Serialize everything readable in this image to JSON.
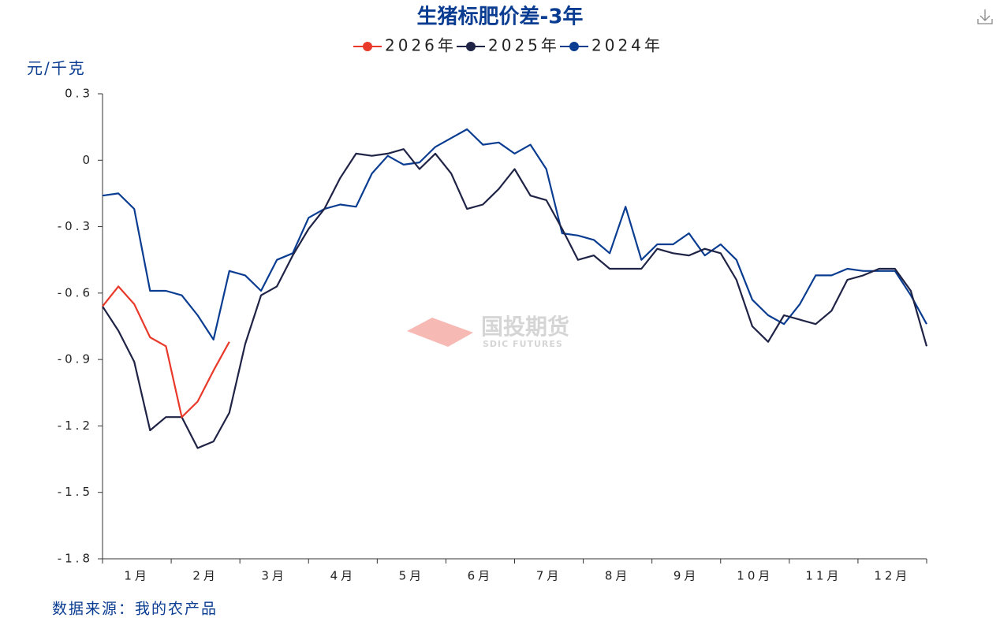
{
  "chart_data": {
    "type": "line",
    "title": "生猪标肥价差-3年",
    "y_label": "元/千克",
    "source": "数据来源：我的农产品",
    "watermark": [
      "国投期货",
      "SDIC FUTURES"
    ],
    "x": [
      0,
      1,
      2,
      3,
      4,
      5,
      6,
      7,
      8,
      9,
      10,
      11,
      12,
      13,
      14,
      15,
      16,
      17,
      18,
      19,
      20,
      21,
      22,
      23,
      24,
      25,
      26,
      27,
      28,
      29,
      30,
      31,
      32,
      33,
      34,
      35,
      36,
      37,
      38,
      39,
      40,
      41,
      42,
      43,
      44,
      45,
      46,
      47,
      48,
      49,
      50,
      51,
      52
    ],
    "xlim": [
      0,
      52
    ],
    "xticks": [
      {
        "value": 2.17,
        "label": "1月"
      },
      {
        "value": 6.5,
        "label": "2月"
      },
      {
        "value": 10.83,
        "label": "3月"
      },
      {
        "value": 15.17,
        "label": "4月"
      },
      {
        "value": 19.5,
        "label": "5月"
      },
      {
        "value": 23.83,
        "label": "6月"
      },
      {
        "value": 28.17,
        "label": "7月"
      },
      {
        "value": 32.5,
        "label": "8月"
      },
      {
        "value": 36.83,
        "label": "9月"
      },
      {
        "value": 41.17,
        "label": "10月"
      },
      {
        "value": 45.5,
        "label": "11月"
      },
      {
        "value": 49.83,
        "label": "12月"
      }
    ],
    "ylim": [
      -1.8,
      0.3
    ],
    "yticks": [
      0.3,
      0,
      -0.3,
      -0.6,
      -0.9,
      -1.2,
      -1.5,
      -1.8
    ],
    "series": [
      {
        "name": "2026年",
        "color": "#e8392a",
        "values": [
          -0.66,
          -0.57,
          -0.65,
          -0.8,
          -0.84,
          -1.16,
          -1.09,
          -0.95,
          -0.82,
          null,
          null,
          null,
          null,
          null,
          null,
          null,
          null,
          null,
          null,
          null,
          null,
          null,
          null,
          null,
          null,
          null,
          null,
          null,
          null,
          null,
          null,
          null,
          null,
          null,
          null,
          null,
          null,
          null,
          null,
          null,
          null,
          null,
          null,
          null,
          null,
          null,
          null,
          null,
          null,
          null,
          null,
          null,
          null
        ]
      },
      {
        "name": "2025年",
        "color": "#1f2345",
        "values": [
          -0.66,
          -0.77,
          -0.91,
          -1.22,
          -1.16,
          -1.16,
          -1.3,
          -1.27,
          -1.14,
          -0.83,
          -0.61,
          -0.57,
          -0.43,
          -0.31,
          -0.22,
          -0.08,
          0.03,
          0.02,
          0.03,
          0.05,
          -0.04,
          0.03,
          -0.06,
          -0.22,
          -0.2,
          -0.13,
          -0.04,
          -0.16,
          -0.18,
          -0.31,
          -0.45,
          -0.43,
          -0.49,
          -0.49,
          -0.49,
          -0.4,
          -0.42,
          -0.43,
          -0.4,
          -0.42,
          -0.54,
          -0.75,
          -0.82,
          -0.7,
          -0.72,
          -0.74,
          -0.68,
          -0.54,
          -0.52,
          -0.49,
          -0.49,
          -0.59,
          -0.84
        ]
      },
      {
        "name": "2024年",
        "color": "#0a3d91",
        "values": [
          -0.16,
          -0.15,
          -0.22,
          -0.59,
          -0.59,
          -0.61,
          -0.7,
          -0.81,
          -0.5,
          -0.52,
          -0.59,
          -0.45,
          -0.42,
          -0.26,
          -0.22,
          -0.2,
          -0.21,
          -0.06,
          0.02,
          -0.02,
          -0.01,
          0.06,
          0.1,
          0.14,
          0.07,
          0.08,
          0.03,
          0.07,
          -0.04,
          -0.33,
          -0.34,
          -0.36,
          -0.42,
          -0.21,
          -0.45,
          -0.38,
          -0.38,
          -0.33,
          -0.43,
          -0.38,
          -0.45,
          -0.63,
          -0.7,
          -0.74,
          -0.65,
          -0.52,
          -0.52,
          -0.49,
          -0.5,
          -0.5,
          -0.5,
          -0.61,
          -0.74
        ]
      }
    ]
  }
}
